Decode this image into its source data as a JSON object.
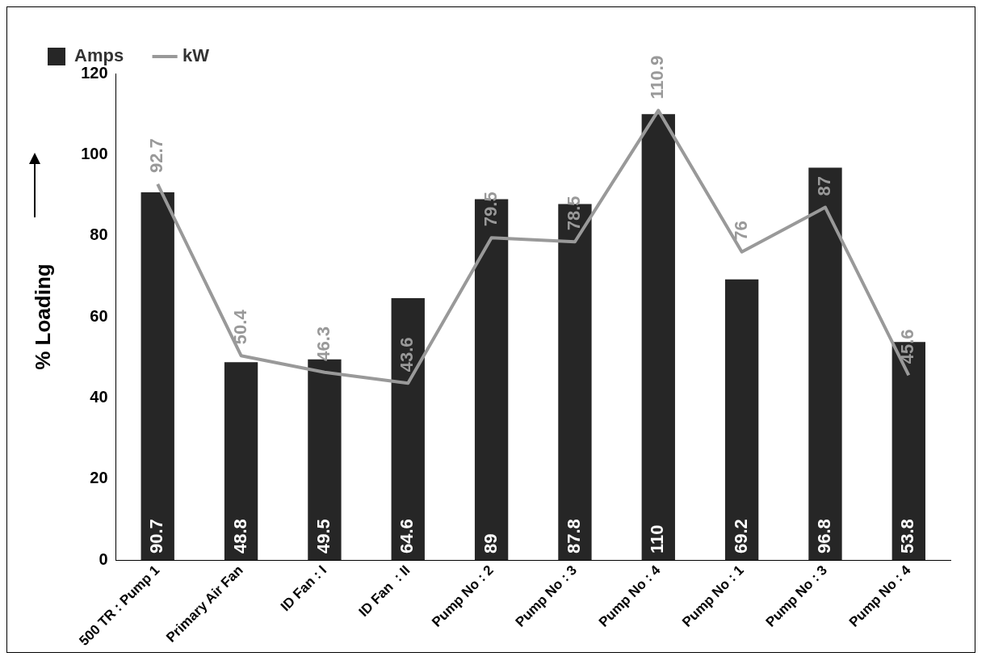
{
  "chart_data": {
    "type": "bar",
    "ylabel": "% Loading",
    "categories": [
      "500 TR : Pump 1",
      "Primary Air Fan",
      "ID Fan : I",
      "ID Fan  : II",
      "Pump No : 2",
      "Pump No : 3",
      "Pump No : 4",
      "Pump No : 1",
      "Pump No : 3",
      "Pump No : 4"
    ],
    "series": [
      {
        "name": "Amps",
        "color": "#262626",
        "values": [
          90.7,
          48.8,
          49.5,
          64.6,
          89,
          87.8,
          110,
          69.2,
          96.8,
          53.8
        ]
      },
      {
        "name": "kW",
        "type": "line",
        "color": "#999999",
        "values": [
          92.7,
          50.4,
          46.3,
          43.6,
          79.5,
          78.5,
          110.9,
          76,
          87,
          45.6
        ]
      }
    ],
    "ylim": [
      0,
      120
    ],
    "yticks": [
      0,
      20,
      40,
      60,
      80,
      100,
      120
    ],
    "grid": false,
    "legend": "top",
    "data_labels": true
  }
}
